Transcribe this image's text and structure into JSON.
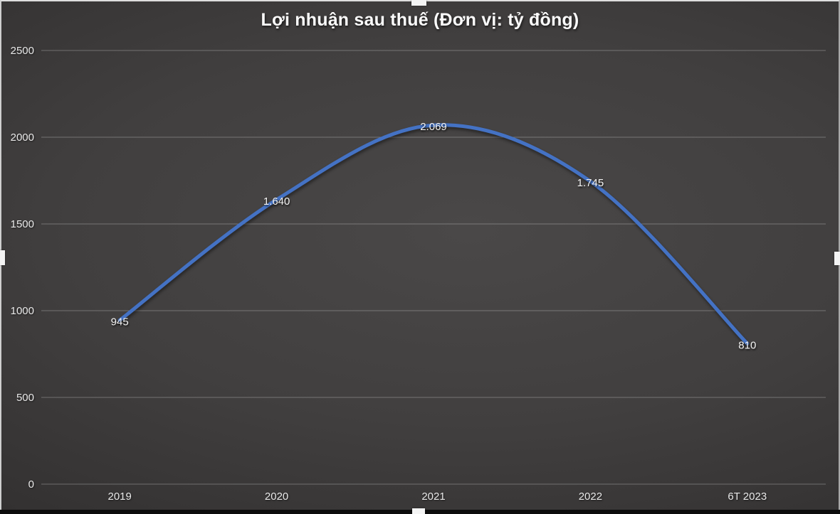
{
  "title": "Lợi nhuận sau thuế (Đơn vị: tỷ đồng)",
  "chart_data": {
    "type": "line",
    "title": "Lợi nhuận sau thuế (Đơn vị: tỷ đồng)",
    "categories": [
      "2019",
      "2020",
      "2021",
      "2022",
      "6T 2023"
    ],
    "series": [
      {
        "name": "Lợi nhuận sau thuế",
        "values": [
          945,
          1640,
          2069,
          1745,
          810
        ],
        "data_labels": [
          "945",
          "1.640",
          "2.069",
          "1.745",
          "810"
        ],
        "color": "#4472c4",
        "smooth": true,
        "line_width": 5
      }
    ],
    "xlabel": "",
    "ylabel": "",
    "ylim": [
      0,
      2500
    ],
    "yticks": [
      0,
      500,
      1000,
      1500,
      2000,
      2500
    ],
    "ytick_labels": [
      "0",
      "500",
      "1000",
      "1500",
      "2000",
      "2500"
    ],
    "grid": true,
    "legend": "none",
    "background": "dark-gray-gradient",
    "label_color": "#f3f3f3",
    "axis_label_color": "#e9e9e9",
    "gridline_color": "rgba(255,255,255,0.28)"
  }
}
